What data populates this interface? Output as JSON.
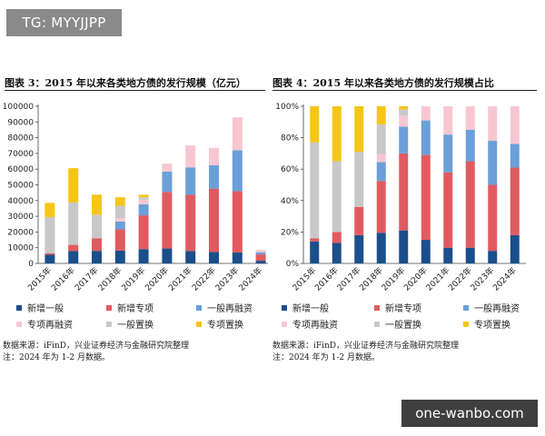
{
  "badge": {
    "text": "TG: MYYJJPP"
  },
  "watermark": {
    "text": "one-wanbo.com"
  },
  "colors": {
    "xinzeng_yiban": "#1a4f8c",
    "xinzeng_zhuanxiang": "#e15a5f",
    "yiban_zaironghzi": "#6a9fd9",
    "zhuanxiang_zaironghzi": "#f7c7d1",
    "yiban_zhihuan": "#c8c8c8",
    "zhuanxiang_zhihuan": "#f5c518"
  },
  "chart_data": [
    {
      "type": "bar",
      "stacked": true,
      "title": "图表 3：2015 年以来各类地方债的发行规模（亿元）",
      "categories": [
        "2015年",
        "2016年",
        "2017年",
        "2018年",
        "2019年",
        "2020年",
        "2021年",
        "2022年",
        "2023年",
        "2024年"
      ],
      "ylim": [
        0,
        100000
      ],
      "yticks": [
        "0",
        "10000",
        "20000",
        "30000",
        "40000",
        "50000",
        "60000",
        "70000",
        "80000",
        "90000",
        "100000"
      ],
      "series": [
        {
          "name": "新增一般",
          "values": [
            5500,
            7800,
            8000,
            8200,
            9100,
            9500,
            7900,
            7200,
            7000,
            1700
          ]
        },
        {
          "name": "新增专项",
          "values": [
            1000,
            4000,
            8000,
            13500,
            21500,
            36000,
            35800,
            40400,
            39000,
            4000
          ]
        },
        {
          "name": "一般再融资",
          "values": [
            0,
            0,
            0,
            5000,
            7000,
            13000,
            17400,
            14900,
            26000,
            1400
          ]
        },
        {
          "name": "专项再融资",
          "values": [
            0,
            0,
            0,
            2000,
            3000,
            5000,
            14000,
            11000,
            21000,
            1500
          ]
        },
        {
          "name": "一般置换",
          "values": [
            23000,
            27000,
            15000,
            8000,
            1500,
            0,
            0,
            0,
            0,
            0
          ]
        },
        {
          "name": "专项置换",
          "values": [
            9000,
            21800,
            12800,
            5400,
            1600,
            0,
            0,
            0,
            0,
            0
          ]
        }
      ]
    },
    {
      "type": "bar",
      "stacked": true,
      "percent": true,
      "title": "图表 4：2015 年以来各类地方债的发行规模占比",
      "categories": [
        "2015年",
        "2016年",
        "2017年",
        "2018年",
        "2019年",
        "2020年",
        "2021年",
        "2022年",
        "2023年",
        "2024年"
      ],
      "ylim": [
        0,
        100
      ],
      "yticks": [
        "0%",
        "20%",
        "40%",
        "60%",
        "80%",
        "100%"
      ],
      "series": [
        {
          "name": "新增一般",
          "values": [
            14,
            13,
            18,
            19.5,
            21,
            15,
            10,
            10,
            8,
            18
          ]
        },
        {
          "name": "新增专项",
          "values": [
            2,
            7,
            18,
            33,
            49,
            54,
            48,
            55,
            42,
            43
          ]
        },
        {
          "name": "一般再融资",
          "values": [
            0,
            0,
            0,
            12,
            17,
            22,
            24,
            20,
            28,
            15
          ]
        },
        {
          "name": "专项再融资",
          "values": [
            0,
            0,
            0,
            5,
            7,
            9,
            18,
            15,
            22,
            24
          ]
        },
        {
          "name": "一般置换",
          "values": [
            61,
            45,
            35,
            19,
            4,
            0,
            0,
            0,
            0,
            0
          ]
        },
        {
          "name": "专项置换",
          "values": [
            23,
            35,
            29,
            11.5,
            2,
            0,
            0,
            0,
            0,
            0
          ]
        }
      ]
    }
  ],
  "legend": [
    "新增一般",
    "新增专项",
    "一般再融资",
    "专项再融资",
    "一般置换",
    "专项置换"
  ],
  "notes": {
    "source": "数据来源：iFinD，兴业证券经济与金融研究院整理",
    "note": "注：2024 年为 1-2 月数据。"
  }
}
